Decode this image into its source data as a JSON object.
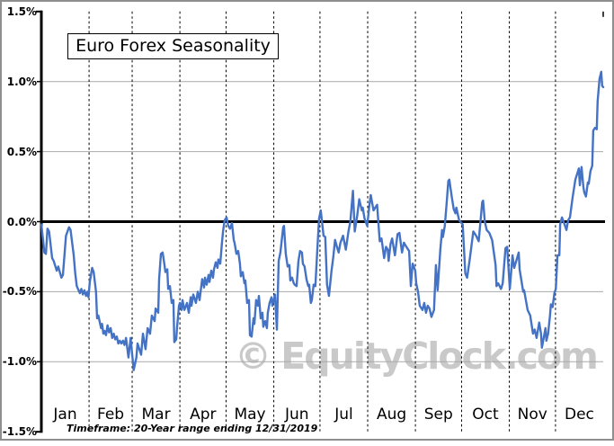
{
  "chart_data": {
    "type": "line",
    "title": "Euro Forex Seasonality",
    "footnote": "Timeframe: 20-Year range ending 12/31/2019",
    "watermark": "© EquityClock.com",
    "xlabel": "",
    "ylabel": "",
    "x_unit": "day_of_year",
    "days_in_year": 365,
    "months": [
      "Jan",
      "Feb",
      "Mar",
      "Apr",
      "May",
      "Jun",
      "Jul",
      "Aug",
      "Sep",
      "Oct",
      "Nov",
      "Dec"
    ],
    "month_start_days": [
      0,
      31,
      59,
      90,
      120,
      151,
      181,
      212,
      243,
      273,
      304,
      334
    ],
    "ylim": [
      -1.5,
      1.5
    ],
    "ytick_step": 0.5,
    "ytick_labels": [
      "1.5%",
      "1.0%",
      "0.5%",
      "0.0%",
      "-0.5%",
      "-1.0%",
      "-1.5%"
    ],
    "grid": true,
    "legend": "none",
    "line_color": "#4472c4",
    "zero_line_color": "#000000",
    "grid_color": "#a9a9a9",
    "month_gridline_color": "#000000",
    "points": [
      [
        0,
        -0.02
      ],
      [
        1,
        -0.12
      ],
      [
        2,
        -0.22
      ],
      [
        3,
        -0.23
      ],
      [
        4,
        -0.05
      ],
      [
        5,
        -0.07
      ],
      [
        7,
        -0.26
      ],
      [
        8,
        -0.28
      ],
      [
        10,
        -0.35
      ],
      [
        11,
        -0.32
      ],
      [
        13,
        -0.4
      ],
      [
        14,
        -0.38
      ],
      [
        16,
        -0.1
      ],
      [
        18,
        -0.04
      ],
      [
        19,
        -0.06
      ],
      [
        21,
        -0.24
      ],
      [
        22,
        -0.37
      ],
      [
        23,
        -0.46
      ],
      [
        25,
        -0.51
      ],
      [
        26,
        -0.48
      ],
      [
        27,
        -0.52
      ],
      [
        28,
        -0.49
      ],
      [
        29,
        -0.53
      ],
      [
        30,
        -0.5
      ],
      [
        30.6,
        -0.54
      ],
      [
        31.5,
        -0.43
      ],
      [
        33,
        -0.33
      ],
      [
        34,
        -0.36
      ],
      [
        35.5,
        -0.5
      ],
      [
        36.2,
        -0.69
      ],
      [
        37,
        -0.67
      ],
      [
        38.8,
        -0.76
      ],
      [
        39.4,
        -0.73
      ],
      [
        40.3,
        -0.8
      ],
      [
        41,
        -0.78
      ],
      [
        42,
        -0.81
      ],
      [
        43,
        -0.74
      ],
      [
        44,
        -0.79
      ],
      [
        45,
        -0.76
      ],
      [
        46,
        -0.83
      ],
      [
        47,
        -0.8
      ],
      [
        48,
        -0.84
      ],
      [
        49,
        -0.82
      ],
      [
        50,
        -0.87
      ],
      [
        51,
        -0.85
      ],
      [
        52,
        -0.87
      ],
      [
        53,
        -0.85
      ],
      [
        54,
        -0.88
      ],
      [
        55,
        -0.83
      ],
      [
        56.6,
        -0.97
      ],
      [
        58,
        -0.83
      ],
      [
        60,
        -1.06
      ],
      [
        61.7,
        -0.97
      ],
      [
        62.5,
        -0.87
      ],
      [
        64.8,
        -0.95
      ],
      [
        66,
        -0.8
      ],
      [
        67.7,
        -0.91
      ],
      [
        69,
        -0.76
      ],
      [
        70.6,
        -0.8
      ],
      [
        71.8,
        -0.67
      ],
      [
        73.6,
        -0.71
      ],
      [
        74.2,
        -0.62
      ],
      [
        75.9,
        -0.65
      ],
      [
        76.5,
        -0.41
      ],
      [
        77.7,
        -0.23
      ],
      [
        78.8,
        -0.22
      ],
      [
        80,
        -0.31
      ],
      [
        80.6,
        -0.36
      ],
      [
        81.8,
        -0.34
      ],
      [
        82.4,
        -0.48
      ],
      [
        83.5,
        -0.46
      ],
      [
        84.7,
        -0.58
      ],
      [
        85.8,
        -0.56
      ],
      [
        86.4,
        -0.86
      ],
      [
        87.6,
        -0.84
      ],
      [
        88.2,
        -0.75
      ],
      [
        89.4,
        -0.6
      ],
      [
        90,
        -0.58
      ],
      [
        91.1,
        -0.63
      ],
      [
        91.7,
        -0.56
      ],
      [
        92.9,
        -0.63
      ],
      [
        94.6,
        -0.58
      ],
      [
        95.8,
        -0.65
      ],
      [
        97,
        -0.54
      ],
      [
        97.5,
        -0.6
      ],
      [
        98.7,
        -0.52
      ],
      [
        100.4,
        -0.58
      ],
      [
        101.6,
        -0.5
      ],
      [
        102.8,
        -0.56
      ],
      [
        104.5,
        -0.41
      ],
      [
        105.7,
        -0.47
      ],
      [
        106.3,
        -0.4
      ],
      [
        107.4,
        -0.45
      ],
      [
        108.6,
        -0.38
      ],
      [
        109.2,
        -0.43
      ],
      [
        110.4,
        -0.35
      ],
      [
        111.5,
        -0.4
      ],
      [
        112.1,
        -0.34
      ],
      [
        113.3,
        -0.29
      ],
      [
        114.4,
        -0.33
      ],
      [
        115,
        -0.27
      ],
      [
        116.2,
        -0.3
      ],
      [
        117.3,
        -0.15
      ],
      [
        118,
        -0.07
      ],
      [
        119.1,
        0.01
      ],
      [
        120.3,
        0.03
      ],
      [
        121.4,
        -0.03
      ],
      [
        122.6,
        -0.05
      ],
      [
        123.8,
        -0.01
      ],
      [
        125,
        -0.13
      ],
      [
        125.5,
        -0.15
      ],
      [
        126.7,
        -0.23
      ],
      [
        127.9,
        -0.21
      ],
      [
        129,
        -0.3
      ],
      [
        129.6,
        -0.39
      ],
      [
        130.8,
        -0.36
      ],
      [
        131.9,
        -0.44
      ],
      [
        132.5,
        -0.42
      ],
      [
        133.7,
        -0.58
      ],
      [
        134.9,
        -0.56
      ],
      [
        135.5,
        -0.81
      ],
      [
        136.6,
        -0.82
      ],
      [
        137.8,
        -0.69
      ],
      [
        138.4,
        -0.73
      ],
      [
        139.5,
        -0.56
      ],
      [
        140.7,
        -0.6
      ],
      [
        141.3,
        -0.53
      ],
      [
        142.5,
        -0.69
      ],
      [
        143.6,
        -0.65
      ],
      [
        144.2,
        -0.75
      ],
      [
        145.4,
        -0.71
      ],
      [
        146.5,
        -0.76
      ],
      [
        147.1,
        -0.65
      ],
      [
        148.3,
        -0.58
      ],
      [
        149.5,
        -0.54
      ],
      [
        150.1,
        -0.6
      ],
      [
        151.8,
        -0.52
      ],
      [
        152.4,
        -0.65
      ],
      [
        153,
        -0.77
      ],
      [
        154.2,
        -0.28
      ],
      [
        155.3,
        -0.22
      ],
      [
        157.1,
        -0.04
      ],
      [
        157.6,
        -0.03
      ],
      [
        158.8,
        -0.23
      ],
      [
        160,
        -0.32
      ],
      [
        161.1,
        -0.31
      ],
      [
        161.7,
        -0.42
      ],
      [
        162.9,
        -0.4
      ],
      [
        164,
        -0.44
      ],
      [
        164.6,
        -0.45
      ],
      [
        165.8,
        -0.46
      ],
      [
        167,
        -0.28
      ],
      [
        168.1,
        -0.21
      ],
      [
        169.3,
        -0.22
      ],
      [
        169.9,
        -0.3
      ],
      [
        171,
        -0.32
      ],
      [
        172.2,
        -0.41
      ],
      [
        173.4,
        -0.46
      ],
      [
        174,
        -0.45
      ],
      [
        175.1,
        -0.58
      ],
      [
        175.7,
        -0.56
      ],
      [
        176.9,
        -0.45
      ],
      [
        178,
        -0.46
      ],
      [
        179.2,
        -0.22
      ],
      [
        180.4,
        0.02
      ],
      [
        181.5,
        0.08
      ],
      [
        183.3,
        -0.1
      ],
      [
        184.4,
        -0.11
      ],
      [
        185.6,
        -0.45
      ],
      [
        186.8,
        -0.53
      ],
      [
        188.5,
        -0.35
      ],
      [
        189.7,
        -0.25
      ],
      [
        190.8,
        -0.13
      ],
      [
        192,
        -0.18
      ],
      [
        193.1,
        -0.22
      ],
      [
        194.3,
        -0.15
      ],
      [
        196,
        -0.1
      ],
      [
        197.8,
        -0.2
      ],
      [
        199.5,
        -0.07
      ],
      [
        200.7,
        0
      ],
      [
        202.4,
        0.22
      ],
      [
        203.6,
        -0.07
      ],
      [
        205.3,
        0.05
      ],
      [
        206.5,
        0.16
      ],
      [
        208.2,
        0.08
      ],
      [
        208.8,
        0.1
      ],
      [
        210,
        0.02
      ],
      [
        211.7,
        -0.03
      ],
      [
        212.9,
        0.1
      ],
      [
        214,
        0.19
      ],
      [
        215.8,
        0.08
      ],
      [
        216.9,
        0.1
      ],
      [
        218.1,
        0.12
      ],
      [
        219.8,
        -0.14
      ],
      [
        221,
        -0.12
      ],
      [
        222.7,
        -0.26
      ],
      [
        223.9,
        -0.18
      ],
      [
        225,
        -0.2
      ],
      [
        225.6,
        -0.28
      ],
      [
        226.8,
        -0.16
      ],
      [
        227.9,
        -0.12
      ],
      [
        229.7,
        -0.24
      ],
      [
        231.4,
        -0.09
      ],
      [
        232.6,
        -0.08
      ],
      [
        234.3,
        -0.22
      ],
      [
        235.5,
        -0.15
      ],
      [
        236.6,
        -0.17
      ],
      [
        238.9,
        -0.21
      ],
      [
        240,
        -0.46
      ],
      [
        241.2,
        -0.3
      ],
      [
        242.9,
        -0.35
      ],
      [
        243.5,
        -0.44
      ],
      [
        244.7,
        -0.5
      ],
      [
        245.8,
        -0.6
      ],
      [
        247.6,
        -0.63
      ],
      [
        248.7,
        -0.58
      ],
      [
        249.9,
        -0.65
      ],
      [
        251,
        -0.6
      ],
      [
        252.2,
        -0.62
      ],
      [
        253.4,
        -0.68
      ],
      [
        255.1,
        -0.63
      ],
      [
        256.3,
        -0.31
      ],
      [
        257.4,
        -0.49
      ],
      [
        259.2,
        -0.2
      ],
      [
        260.3,
        -0.06
      ],
      [
        260.9,
        -0.11
      ],
      [
        262.1,
        -0.03
      ],
      [
        263.2,
        0.12
      ],
      [
        264.4,
        0.29
      ],
      [
        265,
        0.3
      ],
      [
        266.7,
        0.17
      ],
      [
        267.9,
        0.09
      ],
      [
        269,
        0.06
      ],
      [
        269.6,
        0.1
      ],
      [
        271.4,
        0.01
      ],
      [
        273.7,
        -0.02
      ],
      [
        275.4,
        -0.37
      ],
      [
        276.6,
        -0.4
      ],
      [
        278.3,
        -0.27
      ],
      [
        280.6,
        -0.07
      ],
      [
        282.4,
        -0.1
      ],
      [
        284.1,
        -0.14
      ],
      [
        286.4,
        0.14
      ],
      [
        287,
        0.15
      ],
      [
        288.1,
        0
      ],
      [
        289.3,
        -0.06
      ],
      [
        291,
        -0.08
      ],
      [
        292.8,
        -0.13
      ],
      [
        295.1,
        -0.31
      ],
      [
        295.7,
        -0.46
      ],
      [
        296.8,
        -0.44
      ],
      [
        298.6,
        -0.48
      ],
      [
        299.7,
        -0.44
      ],
      [
        301.5,
        -0.19
      ],
      [
        302.6,
        -0.18
      ],
      [
        304.3,
        -0.48
      ],
      [
        306.1,
        -0.24
      ],
      [
        307.2,
        -0.33
      ],
      [
        310.1,
        -0.22
      ],
      [
        310.7,
        -0.34
      ],
      [
        313,
        -0.5
      ],
      [
        313.6,
        -0.49
      ],
      [
        315.9,
        -0.63
      ],
      [
        317.6,
        -0.67
      ],
      [
        319.4,
        -0.8
      ],
      [
        320.5,
        -0.77
      ],
      [
        321.7,
        -0.83
      ],
      [
        323.4,
        -0.72
      ],
      [
        324.6,
        -0.8
      ],
      [
        325.2,
        -0.9
      ],
      [
        327.5,
        -0.76
      ],
      [
        328.1,
        -0.85
      ],
      [
        329.2,
        -0.8
      ],
      [
        330.4,
        -0.67
      ],
      [
        331,
        -0.59
      ],
      [
        332.1,
        -0.61
      ],
      [
        333.3,
        -0.51
      ],
      [
        334.2,
        -0.48
      ],
      [
        335.3,
        -0.24
      ],
      [
        336.5,
        -0.24
      ],
      [
        337,
        -0.02
      ],
      [
        338.2,
        0.03
      ],
      [
        339.9,
        -0.02
      ],
      [
        341.1,
        -0.06
      ],
      [
        342.2,
        0.01
      ],
      [
        343.4,
        0.03
      ],
      [
        345.1,
        0.17
      ],
      [
        346.9,
        0.3
      ],
      [
        349.2,
        0.38
      ],
      [
        349.8,
        0.26
      ],
      [
        350.9,
        0.39
      ],
      [
        352.1,
        0.25
      ],
      [
        352.7,
        0.21
      ],
      [
        353.8,
        0.18
      ],
      [
        355,
        0.28
      ],
      [
        355.6,
        0.27
      ],
      [
        356.7,
        0.36
      ],
      [
        357.9,
        0.4
      ],
      [
        358.5,
        0.65
      ],
      [
        359.7,
        0.67
      ],
      [
        360.8,
        0.66
      ],
      [
        361.4,
        0.86
      ],
      [
        362.6,
        1.02
      ],
      [
        363.7,
        1.07
      ],
      [
        364.3,
        0.97
      ],
      [
        365,
        0.96
      ]
    ]
  }
}
